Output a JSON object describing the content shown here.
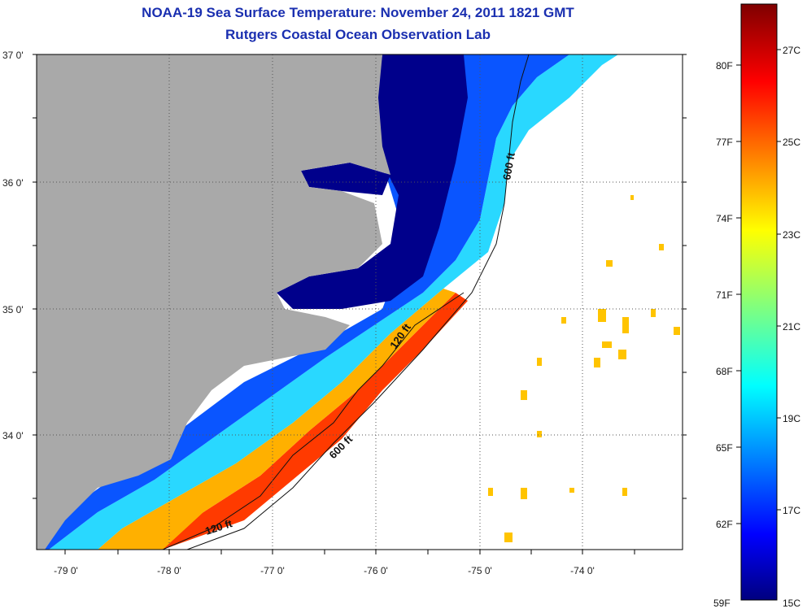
{
  "title": "NOAA-19 Sea Surface Temperature:  November 24, 2011 1821 GMT",
  "subtitle": "Rutgers Coastal Ocean Observation Lab",
  "axes": {
    "lat_labels": [
      "37 0'",
      "36 0'",
      "35 0'",
      "34 0'"
    ],
    "lon_labels": [
      "-79 0'",
      "-78 0'",
      "-77 0'",
      "-76 0'",
      "-75 0'",
      "-74 0'"
    ]
  },
  "contours": {
    "c600_a": "600 ft",
    "c600_b": "600 ft",
    "c120_a": "120 ft",
    "c120_b": "120 ft"
  },
  "colorbar": {
    "fahrenheit": [
      "80F",
      "77F",
      "74F",
      "71F",
      "68F",
      "65F",
      "62F",
      "59F"
    ],
    "celsius": [
      "27C",
      "25C",
      "23C",
      "21C",
      "19C",
      "17C",
      "15C"
    ],
    "colors": [
      "#00007f",
      "#0000ff",
      "#007fff",
      "#00ffff",
      "#7fff7f",
      "#ffff00",
      "#ff7f00",
      "#ff0000",
      "#7f0000"
    ]
  },
  "colors": {
    "land": "#a9a9a9",
    "coastal_water": "#00008b",
    "title": "#1a2fb0"
  }
}
